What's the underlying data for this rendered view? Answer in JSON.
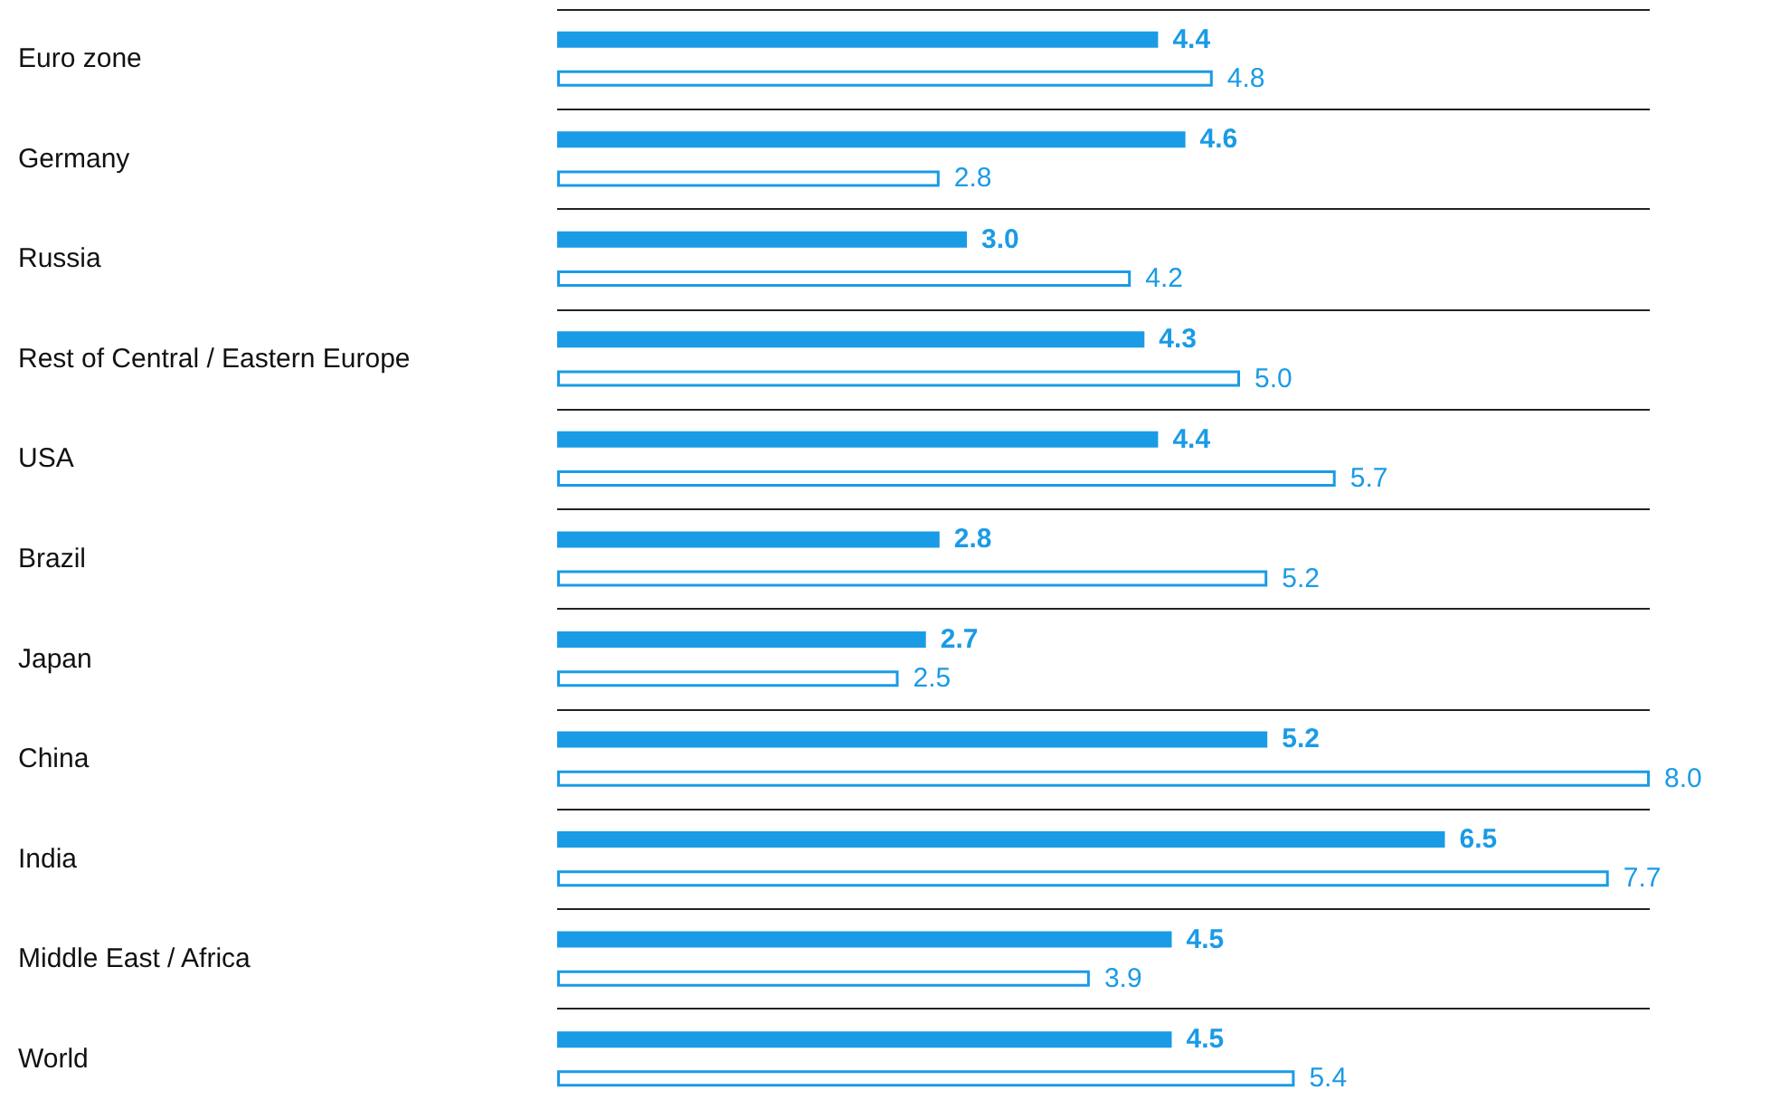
{
  "chart_data": {
    "type": "bar",
    "orientation": "horizontal",
    "categories": [
      "Euro zone",
      "Germany",
      "Russia",
      "Rest of Central / Eastern Europe",
      "USA",
      "Brazil",
      "Japan",
      "China",
      "India",
      "Middle East / Africa",
      "World"
    ],
    "series": [
      {
        "color": "#1a9be6",
        "values": [
          4.4,
          4.6,
          3.0,
          4.3,
          4.4,
          2.8,
          2.7,
          5.2,
          6.5,
          4.5,
          4.5
        ],
        "value_labels": [
          "4.4",
          "4.6",
          "3.0",
          "4.3",
          "4.4",
          "2.8",
          "2.7",
          "5.2",
          "6.5",
          "4.5",
          "4.5"
        ]
      },
      {
        "color": "#1a9be6",
        "values": [
          4.8,
          2.8,
          4.2,
          5.0,
          5.7,
          5.2,
          2.5,
          8.0,
          7.7,
          3.9,
          5.4
        ],
        "value_labels": [
          "4.8",
          "2.8",
          "4.2",
          "5.0",
          "5.7",
          "5.2",
          "2.5",
          "8.0",
          "7.7",
          "3.9",
          "5.4"
        ]
      }
    ],
    "grid": "y"
  }
}
